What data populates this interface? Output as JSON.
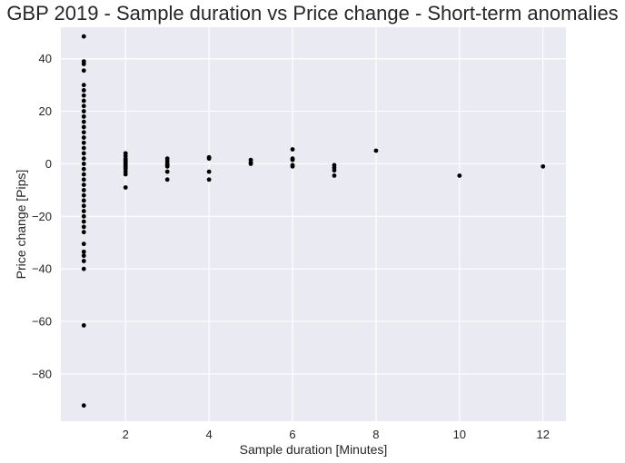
{
  "chart_data": {
    "type": "scatter",
    "title": "GBP 2019 - Sample duration vs Price change - Short-term anomalies",
    "xlabel": "Sample duration [Minutes]",
    "ylabel": "Price change [Pips]",
    "xlim": [
      0.45,
      12.55
    ],
    "ylim": [
      -98,
      52
    ],
    "xticks": [
      2,
      4,
      6,
      8,
      10,
      12
    ],
    "xtick_labels": [
      "2",
      "4",
      "6",
      "8",
      "10",
      "12"
    ],
    "yticks": [
      -80,
      -60,
      -40,
      -20,
      0,
      20,
      40
    ],
    "ytick_labels": [
      "−80",
      "−60",
      "−40",
      "−20",
      "0",
      "20",
      "40"
    ],
    "grid": true,
    "marker_color": "#000000",
    "background_color": "#eaeaf2",
    "series": [
      {
        "points": [
          [
            1,
            48.5
          ],
          [
            1,
            39
          ],
          [
            1,
            38
          ],
          [
            1,
            35.5
          ],
          [
            1,
            30
          ],
          [
            1,
            28
          ],
          [
            1,
            26
          ],
          [
            1,
            24
          ],
          [
            1,
            22
          ],
          [
            1,
            20
          ],
          [
            1,
            18
          ],
          [
            1,
            16
          ],
          [
            1,
            14
          ],
          [
            1,
            12
          ],
          [
            1,
            10
          ],
          [
            1,
            8
          ],
          [
            1,
            6
          ],
          [
            1,
            4
          ],
          [
            1,
            2
          ],
          [
            1,
            0
          ],
          [
            1,
            -2
          ],
          [
            1,
            -4
          ],
          [
            1,
            -6
          ],
          [
            1,
            -8
          ],
          [
            1,
            -10
          ],
          [
            1,
            -12
          ],
          [
            1,
            -14
          ],
          [
            1,
            -16
          ],
          [
            1,
            -18
          ],
          [
            1,
            -20
          ],
          [
            1,
            -22
          ],
          [
            1,
            -24
          ],
          [
            1,
            -26
          ],
          [
            1,
            -30.5
          ],
          [
            1,
            -33.5
          ],
          [
            1,
            -35
          ],
          [
            1,
            -37
          ],
          [
            1,
            -40
          ],
          [
            1,
            -61.5
          ],
          [
            1,
            -92
          ],
          [
            2,
            4
          ],
          [
            2,
            3
          ],
          [
            2,
            2
          ],
          [
            2,
            1.5
          ],
          [
            2,
            1
          ],
          [
            2,
            0.5
          ],
          [
            2,
            0
          ],
          [
            2,
            -0.5
          ],
          [
            2,
            -1
          ],
          [
            2,
            -1.5
          ],
          [
            2,
            -2
          ],
          [
            2,
            -3
          ],
          [
            2,
            -4
          ],
          [
            2,
            -9
          ],
          [
            3,
            2
          ],
          [
            3,
            1
          ],
          [
            3,
            0
          ],
          [
            3,
            -0.5
          ],
          [
            3,
            -1
          ],
          [
            3,
            -3
          ],
          [
            3,
            -6
          ],
          [
            4,
            2.5
          ],
          [
            4,
            2
          ],
          [
            4,
            -3
          ],
          [
            4,
            -6
          ],
          [
            5,
            1.5
          ],
          [
            5,
            0.5
          ],
          [
            5,
            0
          ],
          [
            6,
            5.5
          ],
          [
            6,
            2
          ],
          [
            6,
            1.5
          ],
          [
            6,
            -0.5
          ],
          [
            6,
            -1
          ],
          [
            7,
            -0.5
          ],
          [
            7,
            -1.5
          ],
          [
            7,
            -2.5
          ],
          [
            7,
            -4.5
          ],
          [
            8,
            5
          ],
          [
            10,
            -4.5
          ],
          [
            12,
            -1
          ]
        ]
      }
    ]
  }
}
